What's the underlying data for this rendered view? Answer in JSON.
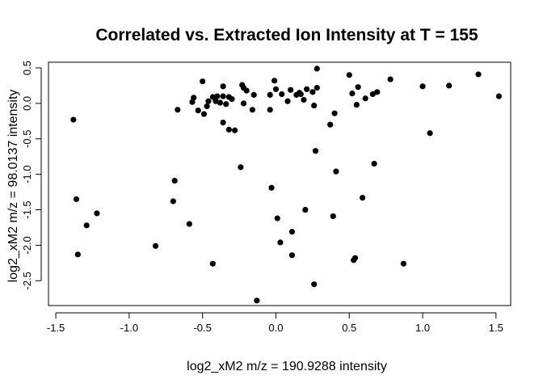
{
  "chart_data": {
    "type": "scatter",
    "title": "Correlated vs. Extracted Ion Intensity at T = 155",
    "xlabel": "log2_xM2 m/z = 190.9288 intensity",
    "ylabel": "log2_xM2 m/z = 98.0137 intensity",
    "xlim": [
      -1.55,
      1.6
    ],
    "ylim": [
      -2.85,
      0.58
    ],
    "xticks": [
      -1.5,
      -1.0,
      -0.5,
      0.0,
      0.5,
      1.0,
      1.5
    ],
    "xtick_labels": [
      "-1.5",
      "-1.0",
      "-0.5",
      "0.0",
      "0.5",
      "1.0",
      "1.5"
    ],
    "yticks": [
      -2.5,
      -2.0,
      -1.5,
      -1.0,
      -0.5,
      0.0,
      0.5
    ],
    "ytick_labels": [
      "-2.5",
      "-2.0",
      "-1.5",
      "-1.0",
      "-0.5",
      "0.0",
      "0.5"
    ],
    "grid": false,
    "point_color": "#000000",
    "points": [
      {
        "x": -1.38,
        "y": -0.23
      },
      {
        "x": -1.36,
        "y": -1.35
      },
      {
        "x": -1.35,
        "y": -2.13
      },
      {
        "x": -1.29,
        "y": -1.72
      },
      {
        "x": -1.22,
        "y": -1.55
      },
      {
        "x": -0.82,
        "y": -2.01
      },
      {
        "x": -0.69,
        "y": -1.09
      },
      {
        "x": -0.67,
        "y": -0.09
      },
      {
        "x": -0.7,
        "y": -1.38
      },
      {
        "x": -0.59,
        "y": -1.7
      },
      {
        "x": -0.57,
        "y": 0.02
      },
      {
        "x": -0.56,
        "y": 0.08
      },
      {
        "x": -0.53,
        "y": -0.1
      },
      {
        "x": -0.5,
        "y": 0.31
      },
      {
        "x": -0.49,
        "y": -0.15
      },
      {
        "x": -0.47,
        "y": -0.04
      },
      {
        "x": -0.46,
        "y": 0.03
      },
      {
        "x": -0.43,
        "y": 0.09
      },
      {
        "x": -0.43,
        "y": -2.26
      },
      {
        "x": -0.41,
        "y": 0.03
      },
      {
        "x": -0.4,
        "y": 0.1
      },
      {
        "x": -0.38,
        "y": 0.01
      },
      {
        "x": -0.36,
        "y": 0.1
      },
      {
        "x": -0.36,
        "y": 0.24
      },
      {
        "x": -0.36,
        "y": -0.27
      },
      {
        "x": -0.34,
        "y": -0.01
      },
      {
        "x": -0.32,
        "y": 0.09
      },
      {
        "x": -0.32,
        "y": -0.37
      },
      {
        "x": -0.3,
        "y": 0.06
      },
      {
        "x": -0.28,
        "y": -0.38
      },
      {
        "x": -0.24,
        "y": -0.9
      },
      {
        "x": -0.23,
        "y": 0.26
      },
      {
        "x": -0.22,
        "y": 0.22
      },
      {
        "x": -0.22,
        "y": 0.0
      },
      {
        "x": -0.2,
        "y": 0.18
      },
      {
        "x": -0.16,
        "y": -0.09
      },
      {
        "x": -0.15,
        "y": 0.12
      },
      {
        "x": -0.13,
        "y": -2.78
      },
      {
        "x": -0.04,
        "y": -0.09
      },
      {
        "x": -0.04,
        "y": 0.12
      },
      {
        "x": -0.03,
        "y": -1.19
      },
      {
        "x": -0.01,
        "y": 0.32
      },
      {
        "x": 0.0,
        "y": 0.2
      },
      {
        "x": 0.01,
        "y": -1.62
      },
      {
        "x": 0.03,
        "y": -1.96
      },
      {
        "x": 0.04,
        "y": 0.13
      },
      {
        "x": 0.08,
        "y": 0.03
      },
      {
        "x": 0.1,
        "y": 0.19
      },
      {
        "x": 0.11,
        "y": -1.81
      },
      {
        "x": 0.11,
        "y": -2.14
      },
      {
        "x": 0.14,
        "y": 0.12
      },
      {
        "x": 0.16,
        "y": 0.15
      },
      {
        "x": 0.17,
        "y": 0.13
      },
      {
        "x": 0.19,
        "y": 0.05
      },
      {
        "x": 0.2,
        "y": -1.5
      },
      {
        "x": 0.21,
        "y": 0.2
      },
      {
        "x": 0.25,
        "y": 0.16
      },
      {
        "x": 0.26,
        "y": -0.03
      },
      {
        "x": 0.26,
        "y": -2.55
      },
      {
        "x": 0.27,
        "y": -0.67
      },
      {
        "x": 0.28,
        "y": 0.49
      },
      {
        "x": 0.28,
        "y": 0.22
      },
      {
        "x": 0.37,
        "y": -0.3
      },
      {
        "x": 0.39,
        "y": -1.59
      },
      {
        "x": 0.4,
        "y": -0.14
      },
      {
        "x": 0.41,
        "y": -0.96
      },
      {
        "x": 0.5,
        "y": 0.4
      },
      {
        "x": 0.52,
        "y": 0.14
      },
      {
        "x": 0.53,
        "y": -2.21
      },
      {
        "x": 0.54,
        "y": -2.18
      },
      {
        "x": 0.55,
        "y": -0.02
      },
      {
        "x": 0.56,
        "y": 0.23
      },
      {
        "x": 0.59,
        "y": -1.33
      },
      {
        "x": 0.61,
        "y": 0.07
      },
      {
        "x": 0.66,
        "y": 0.13
      },
      {
        "x": 0.67,
        "y": -0.85
      },
      {
        "x": 0.69,
        "y": 0.16
      },
      {
        "x": 0.78,
        "y": 0.34
      },
      {
        "x": 0.87,
        "y": -2.26
      },
      {
        "x": 1.0,
        "y": 0.24
      },
      {
        "x": 1.05,
        "y": -0.42
      },
      {
        "x": 1.18,
        "y": 0.25
      },
      {
        "x": 1.38,
        "y": 0.41
      },
      {
        "x": 1.52,
        "y": 0.1
      }
    ]
  }
}
